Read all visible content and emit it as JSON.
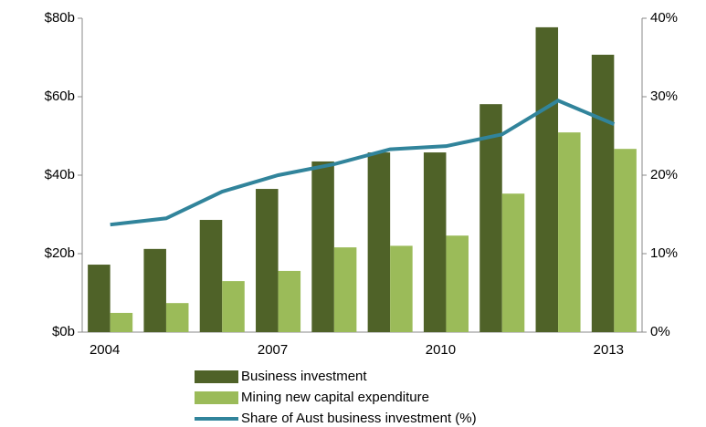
{
  "chart_data": {
    "type": "bar",
    "categories": [
      "2004",
      null,
      null,
      "2007",
      null,
      null,
      "2010",
      null,
      null,
      "2013"
    ],
    "series": [
      {
        "name": "Business investment",
        "type": "bar",
        "color": "#4f6228",
        "values": [
          17.2,
          21.2,
          28.6,
          36.5,
          43.5,
          45.8,
          45.8,
          58.1,
          77.7,
          70.7
        ]
      },
      {
        "name": "Mining new capital expenditure",
        "type": "bar",
        "color": "#9bbb59",
        "values": [
          4.9,
          7.4,
          13,
          15.6,
          21.6,
          22,
          24.6,
          35.3,
          50.9,
          46.7
        ]
      },
      {
        "name": "Share of Aust business investment (%)",
        "type": "line",
        "axis": "y2",
        "color": "#31849b",
        "values": [
          13.7,
          14.5,
          17.9,
          20,
          21.4,
          23.3,
          23.7,
          25.2,
          29.5,
          26.5
        ]
      }
    ],
    "ylim": [
      0,
      80
    ],
    "yticks": [
      {
        "value": 0,
        "label": "$0b"
      },
      {
        "value": 20,
        "label": "$20b"
      },
      {
        "value": 40,
        "label": "$40b"
      },
      {
        "value": 60,
        "label": "$60b"
      },
      {
        "value": 80,
        "label": "$80b"
      }
    ],
    "y2lim": [
      0,
      40
    ],
    "y2ticks": [
      {
        "value": 0,
        "label": "0%"
      },
      {
        "value": 10,
        "label": "10%"
      },
      {
        "value": 20,
        "label": "20%"
      },
      {
        "value": 30,
        "label": "30%"
      },
      {
        "value": 40,
        "label": "40%"
      }
    ],
    "grid": false
  }
}
